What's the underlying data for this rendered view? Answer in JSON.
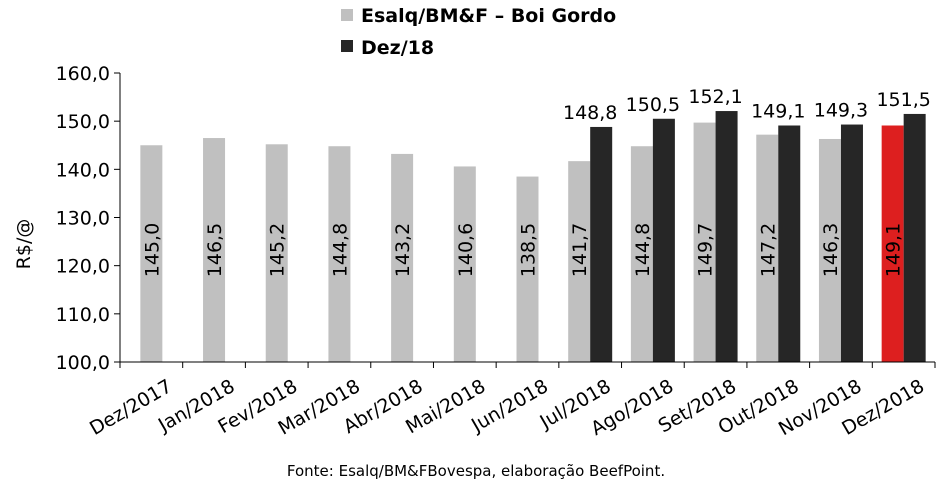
{
  "chart_data": {
    "type": "bar",
    "categories": [
      "Dez/2017",
      "Jan/2018",
      "Fev/2018",
      "Mar/2018",
      "Abr/2018",
      "Mai/2018",
      "Jun/2018",
      "Jul/2018",
      "Ago/2018",
      "Set/2018",
      "Out/2018",
      "Nov/2018",
      "Dez/2018"
    ],
    "series": [
      {
        "name": "Esalq/BM&F – Boi Gordo",
        "color": "#c0c0c0",
        "values": [
          145.0,
          146.5,
          145.2,
          144.8,
          143.2,
          140.6,
          138.5,
          141.7,
          144.8,
          149.7,
          147.2,
          146.3,
          149.1
        ],
        "labels": [
          "145,0",
          "146,5",
          "145,2",
          "144,8",
          "143,2",
          "140,6",
          "138,5",
          "141,7",
          "144,8",
          "149,7",
          "147,2",
          "146,3",
          "149,1"
        ],
        "highlight": {
          "index": 12,
          "color": "#dd1f1f"
        }
      },
      {
        "name": "Dez/18",
        "color": "#262626",
        "values": [
          null,
          null,
          null,
          null,
          null,
          null,
          null,
          148.8,
          150.5,
          152.1,
          149.1,
          149.3,
          151.5
        ],
        "labels": [
          null,
          null,
          null,
          null,
          null,
          null,
          null,
          "148,8",
          "150,5",
          "152,1",
          "149,1",
          "149,3",
          "151,5"
        ]
      }
    ],
    "ylim": [
      100,
      160
    ],
    "yticks": [
      100,
      110,
      120,
      130,
      140,
      150,
      160
    ],
    "ytick_labels": [
      "100,0",
      "110,0",
      "120,0",
      "130,0",
      "140,0",
      "150,0",
      "160,0"
    ],
    "ylabel": "R$/@",
    "xlabel": "",
    "legend": "top",
    "source": "Fonte: Esalq/BM&FBovespa, elaboração BeefPoint."
  }
}
